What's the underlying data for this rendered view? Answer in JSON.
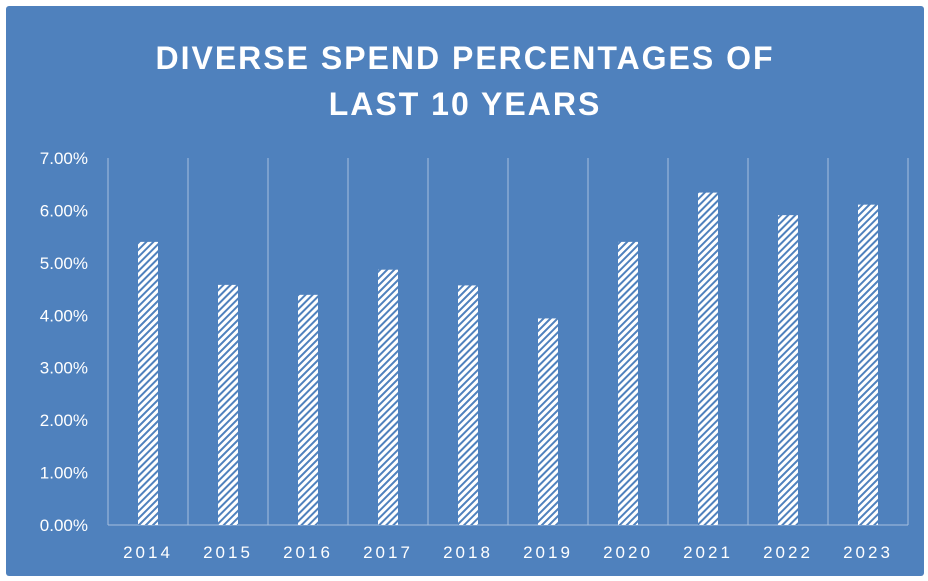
{
  "colors": {
    "background": "#4f81bd",
    "bar_pattern_fg": "#4f81bd",
    "bar_pattern_bg": "#ffffff",
    "grid": "#a7c0de",
    "text": "#ffffff"
  },
  "chart_data": {
    "type": "bar",
    "title": "DIVERSE SPEND PERCENTAGES OF LAST 10 YEARS",
    "title_lines": [
      "DIVERSE SPEND PERCENTAGES OF",
      "LAST 10 YEARS"
    ],
    "categories": [
      "2014",
      "2015",
      "2016",
      "2017",
      "2018",
      "2019",
      "2020",
      "2021",
      "2022",
      "2023"
    ],
    "values": [
      5.4,
      4.58,
      4.39,
      4.87,
      4.57,
      3.94,
      5.4,
      6.34,
      5.91,
      6.11
    ],
    "value_unit": "%",
    "yticks": [
      "0.00%",
      "1.00%",
      "2.00%",
      "3.00%",
      "4.00%",
      "5.00%",
      "6.00%",
      "7.00%"
    ],
    "ylim": [
      0,
      7
    ],
    "xlabel": "",
    "ylabel": "",
    "grid": "vertical",
    "legend": "none",
    "bar_fill": "diagonal-hatch"
  }
}
